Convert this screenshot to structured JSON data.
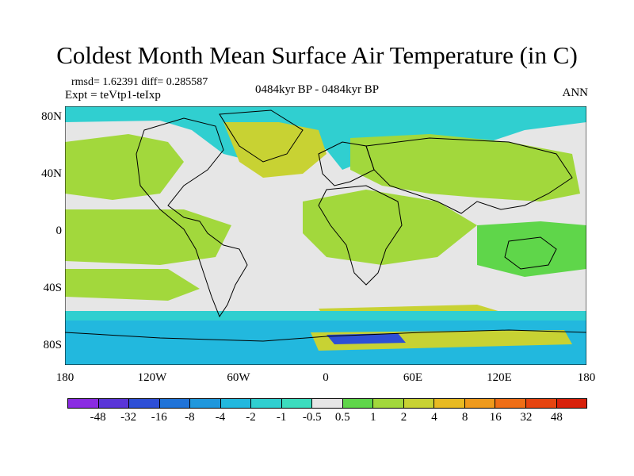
{
  "title": "Coldest Month Mean Surface Air Temperature (in C)",
  "stats": "rmsd= 1.62391 diff= 0.285587",
  "experiment": "Expt = teVtp1-teIxp",
  "period": "0484kyr BP - 0484kyr BP",
  "season": "ANN",
  "y_ticks": [
    "80N",
    "40N",
    "0",
    "40S",
    "80S"
  ],
  "x_ticks": [
    "180",
    "120W",
    "60W",
    "0",
    "60E",
    "120E",
    "180"
  ],
  "colorbar": {
    "labels": [
      "-48",
      "-32",
      "-16",
      "-8",
      "-4",
      "-2",
      "-1",
      "-0.5",
      "0.5",
      "1",
      "2",
      "4",
      "8",
      "16",
      "32",
      "48"
    ],
    "colors": [
      "#8a2be2",
      "#5a35d8",
      "#2e4fd6",
      "#1f73d8",
      "#1f97dc",
      "#22b8de",
      "#30cfd0",
      "#3cdcbe",
      "#e6e6e6",
      "#5fd64a",
      "#a2d83c",
      "#c8d233",
      "#e8ba22",
      "#ef9a1c",
      "#ef6e16",
      "#e64410",
      "#d8200a"
    ]
  }
}
